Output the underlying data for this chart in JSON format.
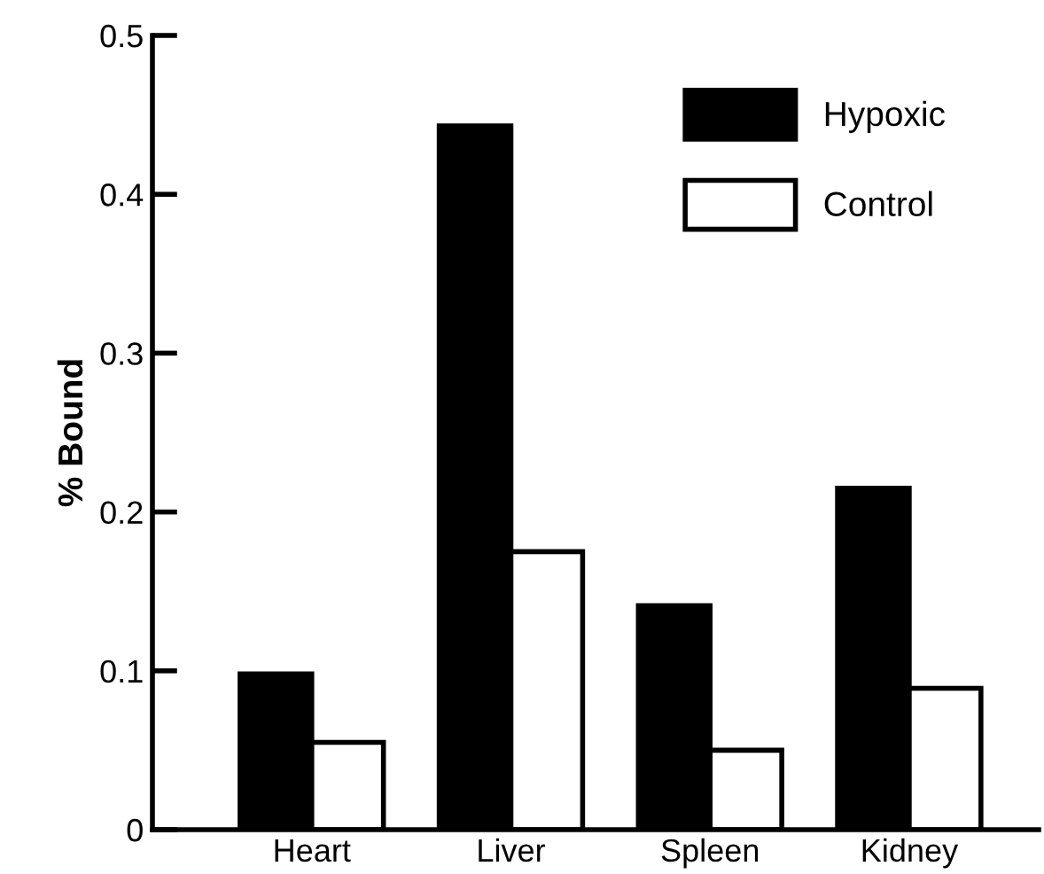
{
  "chart_data": {
    "type": "bar",
    "ylabel": "% Bound",
    "categories": [
      "Heart",
      "Liver",
      "Spleen",
      "Kidney"
    ],
    "series": [
      {
        "name": "Hypoxic",
        "color": "#000000",
        "values": [
          0.098,
          0.443,
          0.141,
          0.215
        ]
      },
      {
        "name": "Control",
        "color": "#ffffff",
        "values": [
          0.055,
          0.175,
          0.05,
          0.089
        ]
      }
    ],
    "ylim": [
      0,
      0.5
    ],
    "yticks": [
      0,
      0.1,
      0.2,
      0.3,
      0.4,
      0.5
    ],
    "grid": false,
    "legend": "top right"
  }
}
